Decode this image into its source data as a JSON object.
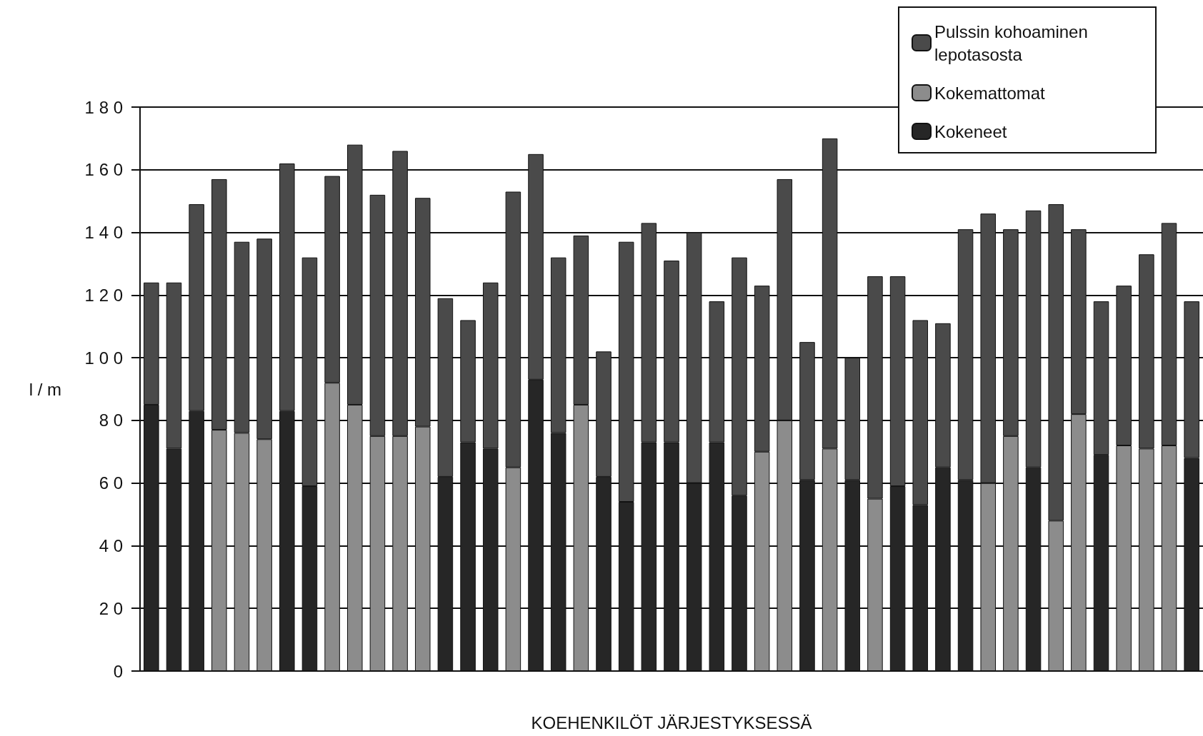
{
  "chart_data": {
    "type": "bar",
    "stacked": true,
    "xlabel": "KOEHENKILÖT JÄRJESTYKSESSÄ",
    "ylabel": "l / m",
    "categories": [
      null,
      null,
      null,
      null,
      null,
      null,
      null,
      null,
      null,
      null,
      null,
      null,
      null,
      null,
      null,
      null,
      null,
      null,
      null,
      null,
      null,
      null,
      null,
      null,
      null,
      null,
      null,
      null,
      null,
      null,
      null,
      null,
      null,
      null,
      null,
      null,
      null,
      null,
      null,
      null,
      null,
      null,
      null,
      null,
      null,
      null,
      null
    ],
    "series": [
      {
        "name": "Kokeneet",
        "color": "#262626",
        "values": [
          85,
          71,
          83,
          null,
          null,
          null,
          83,
          59,
          null,
          null,
          null,
          null,
          null,
          62,
          73,
          71,
          null,
          93,
          76,
          null,
          62,
          54,
          73,
          73,
          60,
          73,
          56,
          null,
          null,
          61,
          null,
          61,
          null,
          59,
          53,
          65,
          61,
          null,
          null,
          65,
          null,
          null,
          69,
          null,
          null,
          null,
          68
        ]
      },
      {
        "name": "Kokemattomat",
        "color": "#8c8c8c",
        "values": [
          null,
          null,
          null,
          77,
          76,
          74,
          null,
          null,
          92,
          85,
          75,
          75,
          78,
          null,
          null,
          null,
          65,
          null,
          null,
          85,
          null,
          null,
          null,
          null,
          null,
          null,
          null,
          70,
          80,
          null,
          71,
          null,
          55,
          null,
          null,
          null,
          null,
          60,
          75,
          null,
          48,
          82,
          null,
          72,
          71,
          72,
          null
        ]
      },
      {
        "name": "Pulssin kohoaminen lepotasosta",
        "color": "#4a4a4a",
        "values": [
          39,
          53,
          66,
          80,
          61,
          64,
          79,
          73,
          66,
          83,
          77,
          91,
          73,
          57,
          39,
          53,
          88,
          72,
          56,
          54,
          40,
          83,
          70,
          58,
          80,
          45,
          76,
          53,
          77,
          44,
          99,
          39,
          71,
          67,
          59,
          46,
          80,
          86,
          66,
          82,
          101,
          59,
          49,
          51,
          62,
          71,
          50
        ]
      }
    ],
    "ylim": [
      0,
      180
    ],
    "yticks": [
      0,
      20,
      40,
      60,
      80,
      100,
      120,
      140,
      160,
      180
    ],
    "grid": "y",
    "legend": "top right"
  }
}
